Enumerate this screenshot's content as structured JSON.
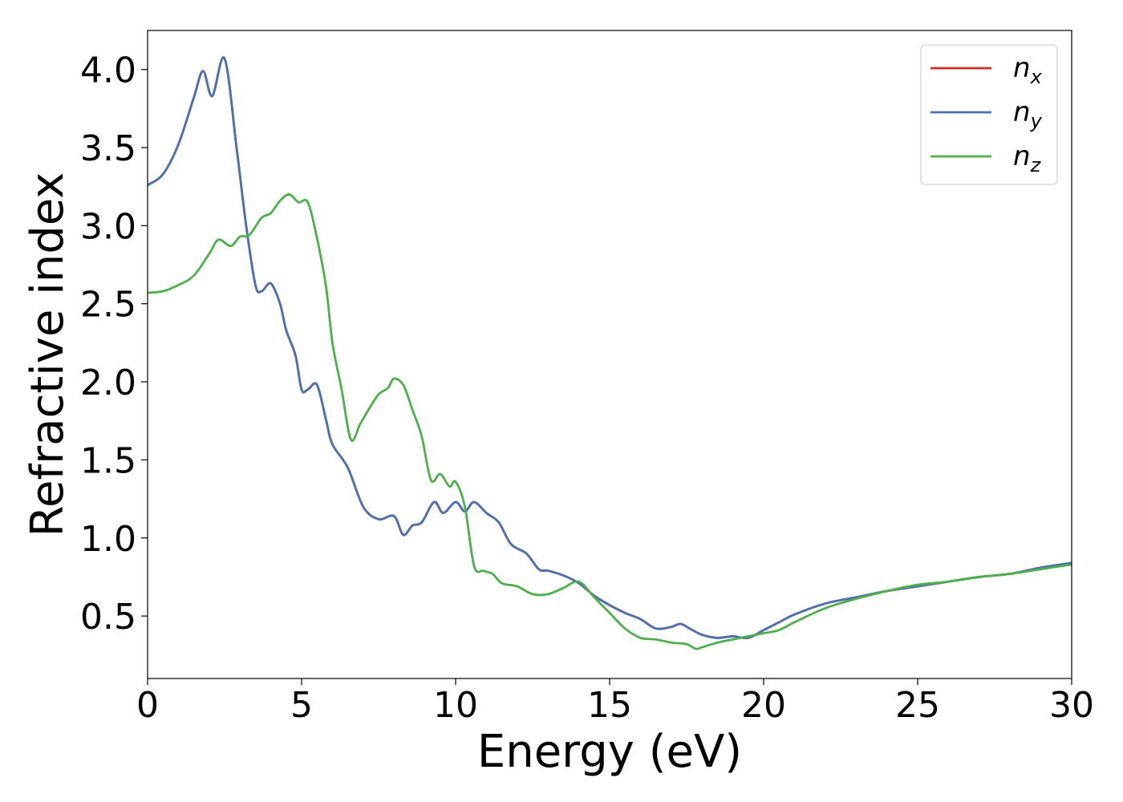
{
  "chart_data": {
    "type": "line",
    "xlabel": "Energy (eV)",
    "ylabel": "Refractive index",
    "xlim": [
      0,
      30
    ],
    "ylim": [
      0.1,
      4.25
    ],
    "xticks": [
      "0",
      "5",
      "10",
      "15",
      "20",
      "25",
      "30"
    ],
    "yticks": [
      "0.5",
      "1.0",
      "1.5",
      "2.0",
      "2.5",
      "3.0",
      "3.5",
      "4.0"
    ],
    "grid": false,
    "legend_position": "top-right",
    "series": [
      {
        "key": "nx",
        "base": "n",
        "sub": "x",
        "color": "#d62728",
        "x": [
          0,
          0.5,
          1.0,
          1.5,
          1.8,
          2.1,
          2.5,
          2.9,
          3.2,
          3.5,
          3.7,
          4.0,
          4.3,
          4.5,
          4.8,
          5.0,
          5.2,
          5.5,
          5.8,
          6.0,
          6.5,
          7.0,
          7.5,
          8.0,
          8.3,
          8.6,
          8.9,
          9.3,
          9.6,
          10.0,
          10.3,
          10.6,
          11.0,
          11.4,
          11.8,
          12.3,
          12.7,
          13.0,
          13.5,
          14.0,
          14.5,
          15.0,
          15.5,
          16.0,
          16.5,
          17.0,
          17.3,
          17.6,
          18.0,
          18.5,
          19.0,
          19.5,
          20.0,
          20.5,
          21.0,
          22.0,
          23.0,
          24.0,
          25.0,
          26.0,
          27.0,
          28.0,
          29.0,
          30.0
        ],
        "values": [
          3.26,
          3.33,
          3.52,
          3.82,
          3.99,
          3.83,
          4.07,
          3.48,
          3.0,
          2.62,
          2.58,
          2.63,
          2.5,
          2.33,
          2.17,
          1.95,
          1.95,
          1.98,
          1.75,
          1.6,
          1.45,
          1.2,
          1.12,
          1.14,
          1.02,
          1.08,
          1.1,
          1.23,
          1.16,
          1.23,
          1.17,
          1.23,
          1.16,
          1.1,
          0.96,
          0.9,
          0.8,
          0.79,
          0.76,
          0.71,
          0.63,
          0.57,
          0.52,
          0.48,
          0.42,
          0.43,
          0.45,
          0.42,
          0.38,
          0.36,
          0.37,
          0.36,
          0.41,
          0.46,
          0.51,
          0.58,
          0.62,
          0.66,
          0.69,
          0.72,
          0.75,
          0.77,
          0.81,
          0.84
        ]
      },
      {
        "key": "ny",
        "base": "n",
        "sub": "y",
        "color": "#4a72b0",
        "x": [
          0,
          0.5,
          1.0,
          1.5,
          1.8,
          2.1,
          2.5,
          2.9,
          3.2,
          3.5,
          3.7,
          4.0,
          4.3,
          4.5,
          4.8,
          5.0,
          5.2,
          5.5,
          5.8,
          6.0,
          6.5,
          7.0,
          7.5,
          8.0,
          8.3,
          8.6,
          8.9,
          9.3,
          9.6,
          10.0,
          10.3,
          10.6,
          11.0,
          11.4,
          11.8,
          12.3,
          12.7,
          13.0,
          13.5,
          14.0,
          14.5,
          15.0,
          15.5,
          16.0,
          16.5,
          17.0,
          17.3,
          17.6,
          18.0,
          18.5,
          19.0,
          19.5,
          20.0,
          20.5,
          21.0,
          22.0,
          23.0,
          24.0,
          25.0,
          26.0,
          27.0,
          28.0,
          29.0,
          30.0
        ],
        "values": [
          3.26,
          3.33,
          3.52,
          3.82,
          3.99,
          3.83,
          4.07,
          3.48,
          3.0,
          2.62,
          2.58,
          2.63,
          2.5,
          2.33,
          2.17,
          1.95,
          1.95,
          1.98,
          1.75,
          1.6,
          1.45,
          1.2,
          1.12,
          1.14,
          1.02,
          1.08,
          1.1,
          1.23,
          1.16,
          1.23,
          1.17,
          1.23,
          1.16,
          1.1,
          0.96,
          0.9,
          0.8,
          0.79,
          0.76,
          0.71,
          0.63,
          0.57,
          0.52,
          0.48,
          0.42,
          0.43,
          0.45,
          0.42,
          0.38,
          0.36,
          0.37,
          0.36,
          0.41,
          0.46,
          0.51,
          0.58,
          0.62,
          0.66,
          0.69,
          0.72,
          0.75,
          0.77,
          0.81,
          0.84
        ]
      },
      {
        "key": "nz",
        "base": "n",
        "sub": "z",
        "color": "#4daf4a",
        "x": [
          0,
          0.5,
          1.0,
          1.5,
          2.0,
          2.3,
          2.7,
          3.0,
          3.3,
          3.7,
          4.0,
          4.3,
          4.6,
          4.9,
          5.2,
          5.5,
          5.8,
          6.0,
          6.3,
          6.6,
          6.9,
          7.2,
          7.5,
          7.8,
          8.0,
          8.3,
          8.6,
          8.9,
          9.2,
          9.5,
          9.8,
          10.0,
          10.3,
          10.6,
          10.9,
          11.2,
          11.5,
          12.0,
          12.5,
          13.0,
          13.5,
          14.0,
          14.5,
          15.0,
          15.5,
          16.0,
          16.5,
          17.0,
          17.5,
          17.8,
          18.0,
          18.5,
          19.0,
          19.5,
          20.0,
          20.5,
          21.0,
          22.0,
          23.0,
          24.0,
          25.0,
          26.0,
          27.0,
          28.0,
          29.0,
          30.0
        ],
        "values": [
          2.57,
          2.58,
          2.62,
          2.68,
          2.82,
          2.91,
          2.87,
          2.93,
          2.94,
          3.05,
          3.08,
          3.16,
          3.2,
          3.15,
          3.15,
          2.92,
          2.6,
          2.25,
          1.95,
          1.63,
          1.73,
          1.83,
          1.92,
          1.96,
          2.02,
          1.98,
          1.82,
          1.65,
          1.37,
          1.41,
          1.33,
          1.36,
          1.2,
          0.82,
          0.79,
          0.77,
          0.71,
          0.69,
          0.64,
          0.64,
          0.68,
          0.72,
          0.62,
          0.52,
          0.42,
          0.36,
          0.35,
          0.33,
          0.32,
          0.29,
          0.3,
          0.33,
          0.35,
          0.37,
          0.39,
          0.41,
          0.46,
          0.55,
          0.61,
          0.66,
          0.7,
          0.72,
          0.75,
          0.77,
          0.8,
          0.83
        ]
      }
    ]
  }
}
